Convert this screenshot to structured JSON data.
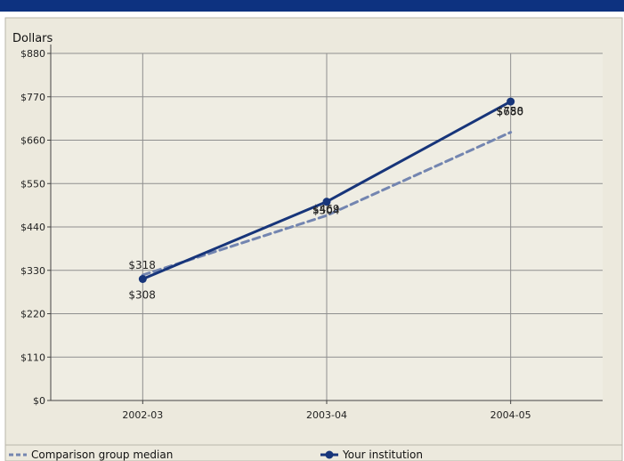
{
  "chart_data": {
    "type": "line",
    "ylabel": "Dollars",
    "categories": [
      "2002-03",
      "2003-04",
      "2004-05"
    ],
    "ylim": [
      0,
      880
    ],
    "yticks": [
      0,
      110,
      220,
      330,
      440,
      550,
      660,
      770,
      880
    ],
    "ytick_labels": [
      "$0",
      "$110",
      "$220",
      "$330",
      "$440",
      "$550",
      "$660",
      "$770",
      "$880"
    ],
    "grid": true,
    "legend_position": "bottom",
    "series": [
      {
        "name": "Comparison group median",
        "values": [
          318,
          469,
          680
        ],
        "value_labels": [
          "$318",
          "$469",
          "$680"
        ],
        "color": "#7385b0",
        "style": "dashed"
      },
      {
        "name": "Your institution",
        "values": [
          308,
          504,
          758
        ],
        "value_labels": [
          "$308",
          "$504",
          "$758"
        ],
        "color": "#17357a",
        "style": "solid"
      }
    ]
  },
  "colors": {
    "header_band": "#0d3280",
    "panel_background": "#ece9dd",
    "plot_background": "#efede3",
    "grid": "#8f8f8f",
    "axis": "#444444"
  },
  "icons": [
    "dashed-line-marker-icon",
    "solid-line-marker-icon"
  ]
}
